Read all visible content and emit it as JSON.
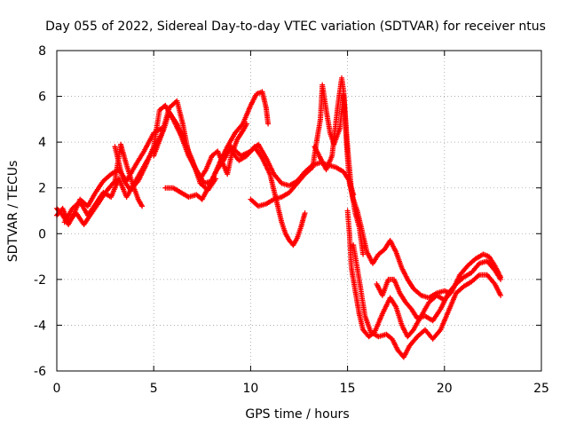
{
  "chart_data": {
    "type": "scatter",
    "title": "Day 055 of 2022, Sidereal Day-to-day VTEC variation (SDTVAR) for receiver ntus",
    "xlabel": "GPS time / hours",
    "ylabel": "SDTVAR / TECUs",
    "xlim": [
      0,
      25
    ],
    "ylim": [
      -6,
      8
    ],
    "xticks": [
      "0",
      "5",
      "10",
      "15",
      "20",
      "25"
    ],
    "yticks": [
      "-6",
      "-4",
      "-2",
      "0",
      "2",
      "4",
      "6",
      "8"
    ],
    "xtick_values": [
      0,
      5,
      10,
      15,
      20,
      25
    ],
    "ytick_values": [
      -6,
      -4,
      -2,
      0,
      2,
      4,
      6,
      8
    ],
    "grid": true,
    "marker": "+",
    "color": "#ff0000",
    "series": [
      {
        "name": "satellite traces",
        "traces": [
          [
            [
              0.0,
              1.1
            ],
            [
              0.3,
              0.8
            ],
            [
              0.6,
              0.4
            ],
            [
              0.9,
              0.9
            ],
            [
              1.2,
              1.5
            ],
            [
              1.6,
              1.2
            ],
            [
              2.0,
              1.8
            ],
            [
              2.4,
              2.3
            ],
            [
              2.8,
              2.6
            ],
            [
              3.2,
              2.8
            ],
            [
              3.6,
              2.3
            ],
            [
              4.0,
              2.9
            ],
            [
              4.5,
              3.6
            ],
            [
              5.0,
              4.4
            ],
            [
              5.4,
              4.6
            ]
          ],
          [
            [
              0.0,
              0.8
            ],
            [
              0.3,
              1.1
            ],
            [
              0.6,
              0.5
            ],
            [
              1.0,
              0.9
            ],
            [
              1.4,
              0.4
            ],
            [
              1.8,
              0.9
            ],
            [
              2.2,
              1.4
            ],
            [
              2.6,
              1.9
            ],
            [
              3.0,
              2.3
            ],
            [
              3.3,
              3.9
            ],
            [
              3.6,
              3.0
            ],
            [
              3.9,
              2.2
            ],
            [
              4.2,
              1.5
            ],
            [
              4.4,
              1.2
            ]
          ],
          [
            [
              0.4,
              0.5
            ],
            [
              0.8,
              1.1
            ],
            [
              1.2,
              1.4
            ],
            [
              1.6,
              0.8
            ],
            [
              2.0,
              1.3
            ],
            [
              2.4,
              1.8
            ],
            [
              2.8,
              1.6
            ],
            [
              3.2,
              2.4
            ],
            [
              3.6,
              1.6
            ],
            [
              4.0,
              2.2
            ],
            [
              4.4,
              2.8
            ],
            [
              4.8,
              3.4
            ],
            [
              5.2,
              4.0
            ],
            [
              5.5,
              4.5
            ],
            [
              5.8,
              5.3
            ],
            [
              6.2,
              4.8
            ],
            [
              6.6,
              4.0
            ],
            [
              7.0,
              3.2
            ],
            [
              7.4,
              2.2
            ],
            [
              7.8,
              1.9
            ],
            [
              8.2,
              2.4
            ]
          ],
          [
            [
              3.0,
              3.8
            ],
            [
              3.4,
              2.4
            ],
            [
              3.8,
              1.9
            ],
            [
              4.2,
              2.3
            ],
            [
              4.6,
              3.0
            ],
            [
              5.0,
              3.8
            ],
            [
              5.3,
              5.4
            ],
            [
              5.6,
              5.6
            ],
            [
              6.0,
              5.0
            ],
            [
              6.4,
              4.3
            ],
            [
              6.8,
              3.4
            ],
            [
              7.2,
              2.8
            ],
            [
              7.6,
              2.2
            ],
            [
              8.0,
              2.3
            ],
            [
              8.4,
              3.1
            ],
            [
              8.8,
              3.8
            ],
            [
              9.2,
              4.4
            ],
            [
              9.6,
              4.8
            ],
            [
              10.0,
              5.6
            ],
            [
              10.3,
              6.1
            ],
            [
              10.6,
              6.2
            ],
            [
              10.8,
              5.5
            ],
            [
              10.9,
              4.8
            ]
          ],
          [
            [
              5.0,
              3.4
            ],
            [
              5.4,
              4.3
            ],
            [
              5.8,
              5.5
            ],
            [
              6.2,
              5.8
            ],
            [
              6.5,
              4.8
            ],
            [
              6.8,
              3.5
            ],
            [
              7.1,
              2.9
            ],
            [
              7.4,
              2.4
            ],
            [
              7.7,
              2.8
            ],
            [
              8.0,
              3.4
            ],
            [
              8.3,
              3.6
            ],
            [
              8.6,
              3.0
            ],
            [
              8.8,
              2.6
            ],
            [
              9.0,
              3.4
            ],
            [
              9.3,
              4.1
            ],
            [
              9.6,
              4.5
            ],
            [
              9.8,
              4.8
            ]
          ],
          [
            [
              5.6,
              2.0
            ],
            [
              6.0,
              2.0
            ],
            [
              6.4,
              1.8
            ],
            [
              6.8,
              1.6
            ],
            [
              7.2,
              1.7
            ],
            [
              7.5,
              1.5
            ],
            [
              7.8,
              2.0
            ],
            [
              8.2,
              2.7
            ],
            [
              8.6,
              3.2
            ],
            [
              9.0,
              3.8
            ],
            [
              9.5,
              3.4
            ],
            [
              10.0,
              3.6
            ],
            [
              10.4,
              3.9
            ],
            [
              10.8,
              3.3
            ],
            [
              11.2,
              2.6
            ],
            [
              11.6,
              2.2
            ],
            [
              12.0,
              2.1
            ],
            [
              12.4,
              2.3
            ],
            [
              12.8,
              2.7
            ],
            [
              13.2,
              3.0
            ],
            [
              13.6,
              3.1
            ],
            [
              14.0,
              3.0
            ],
            [
              14.4,
              2.9
            ],
            [
              14.8,
              2.7
            ],
            [
              15.1,
              2.3
            ],
            [
              15.3,
              1.7
            ]
          ],
          [
            [
              9.0,
              3.6
            ],
            [
              9.4,
              3.2
            ],
            [
              9.8,
              3.4
            ],
            [
              10.2,
              3.8
            ],
            [
              10.6,
              3.3
            ],
            [
              11.0,
              2.6
            ],
            [
              11.2,
              1.9
            ],
            [
              11.4,
              1.2
            ],
            [
              11.6,
              0.5
            ],
            [
              11.8,
              0.0
            ],
            [
              12.0,
              -0.3
            ],
            [
              12.2,
              -0.5
            ],
            [
              12.4,
              -0.2
            ],
            [
              12.6,
              0.3
            ],
            [
              12.8,
              0.9
            ]
          ],
          [
            [
              10.0,
              1.5
            ],
            [
              10.4,
              1.2
            ],
            [
              10.8,
              1.3
            ],
            [
              11.2,
              1.5
            ],
            [
              11.6,
              1.6
            ],
            [
              12.0,
              1.8
            ],
            [
              12.4,
              2.2
            ],
            [
              12.8,
              2.6
            ],
            [
              13.2,
              2.9
            ],
            [
              13.4,
              4.0
            ],
            [
              13.6,
              5.0
            ],
            [
              13.7,
              6.5
            ],
            [
              13.9,
              5.4
            ],
            [
              14.1,
              4.4
            ],
            [
              14.3,
              3.9
            ],
            [
              14.6,
              4.6
            ],
            [
              14.8,
              6.1
            ],
            [
              15.0,
              3.8
            ],
            [
              15.2,
              1.9
            ],
            [
              15.4,
              0.9
            ],
            [
              15.6,
              0.3
            ],
            [
              15.8,
              -0.9
            ]
          ],
          [
            [
              13.3,
              3.8
            ],
            [
              13.6,
              3.3
            ],
            [
              13.9,
              2.8
            ],
            [
              14.2,
              3.4
            ],
            [
              14.5,
              5.6
            ],
            [
              14.7,
              6.8
            ],
            [
              14.8,
              6.2
            ],
            [
              14.95,
              3.9
            ],
            [
              15.1,
              2.2
            ],
            [
              15.3,
              1.5
            ],
            [
              15.5,
              1.0
            ],
            [
              15.7,
              0.3
            ],
            [
              16.0,
              -0.8
            ],
            [
              16.3,
              -1.3
            ],
            [
              16.6,
              -0.9
            ],
            [
              16.9,
              -0.7
            ],
            [
              17.2,
              -0.3
            ],
            [
              17.5,
              -0.8
            ],
            [
              17.8,
              -1.5
            ],
            [
              18.1,
              -2.0
            ],
            [
              18.4,
              -2.4
            ],
            [
              18.8,
              -2.7
            ],
            [
              19.2,
              -2.8
            ],
            [
              19.6,
              -2.6
            ],
            [
              20.0,
              -2.5
            ],
            [
              20.3,
              -2.6
            ]
          ],
          [
            [
              15.0,
              1.0
            ],
            [
              15.1,
              0.0
            ],
            [
              15.2,
              -1.5
            ],
            [
              15.4,
              -2.5
            ],
            [
              15.6,
              -3.5
            ],
            [
              15.8,
              -4.2
            ],
            [
              16.1,
              -4.5
            ],
            [
              16.4,
              -4.3
            ],
            [
              16.8,
              -3.5
            ],
            [
              17.2,
              -2.8
            ],
            [
              17.5,
              -3.2
            ],
            [
              17.8,
              -4.0
            ],
            [
              18.1,
              -4.5
            ],
            [
              18.4,
              -4.2
            ],
            [
              18.8,
              -3.6
            ],
            [
              19.2,
              -3.0
            ],
            [
              19.6,
              -2.7
            ],
            [
              20.0,
              -2.9
            ],
            [
              20.4,
              -2.5
            ],
            [
              20.8,
              -1.8
            ],
            [
              21.2,
              -1.4
            ],
            [
              21.6,
              -1.1
            ],
            [
              22.0,
              -0.9
            ],
            [
              22.3,
              -1.0
            ],
            [
              22.6,
              -1.4
            ],
            [
              22.9,
              -1.9
            ]
          ],
          [
            [
              15.3,
              -0.5
            ],
            [
              15.6,
              -2.0
            ],
            [
              15.9,
              -3.6
            ],
            [
              16.2,
              -4.3
            ],
            [
              16.6,
              -4.5
            ],
            [
              17.0,
              -4.4
            ],
            [
              17.3,
              -4.6
            ],
            [
              17.6,
              -5.1
            ],
            [
              17.9,
              -5.4
            ],
            [
              18.2,
              -4.9
            ],
            [
              18.6,
              -4.5
            ],
            [
              19.0,
              -4.2
            ],
            [
              19.4,
              -4.6
            ],
            [
              19.8,
              -4.2
            ],
            [
              20.2,
              -3.4
            ],
            [
              20.6,
              -2.6
            ],
            [
              21.0,
              -2.3
            ],
            [
              21.4,
              -2.1
            ],
            [
              21.8,
              -1.8
            ],
            [
              22.2,
              -1.8
            ],
            [
              22.6,
              -2.2
            ],
            [
              22.9,
              -2.7
            ]
          ],
          [
            [
              16.5,
              -2.2
            ],
            [
              16.8,
              -2.7
            ],
            [
              17.1,
              -2.0
            ],
            [
              17.4,
              -2.0
            ],
            [
              17.7,
              -2.6
            ],
            [
              18.0,
              -3.0
            ],
            [
              18.3,
              -3.3
            ],
            [
              18.6,
              -3.7
            ],
            [
              19.0,
              -3.6
            ],
            [
              19.4,
              -3.8
            ],
            [
              19.8,
              -3.3
            ],
            [
              20.2,
              -2.6
            ],
            [
              20.6,
              -2.2
            ],
            [
              21.0,
              -1.9
            ],
            [
              21.4,
              -1.7
            ],
            [
              21.8,
              -1.3
            ],
            [
              22.2,
              -1.2
            ],
            [
              22.6,
              -1.6
            ],
            [
              22.9,
              -2.0
            ]
          ]
        ]
      }
    ]
  }
}
